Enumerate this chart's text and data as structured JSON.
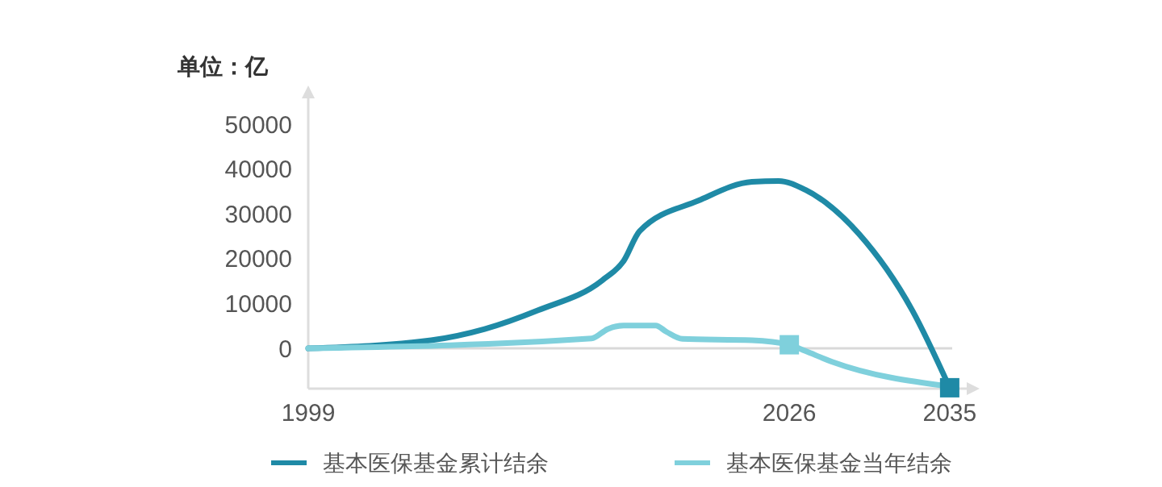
{
  "chart_data": {
    "type": "line",
    "ylabel": "单位：亿",
    "x": [
      1999,
      2005.9,
      2008.9,
      2011.9,
      2015.5,
      2016.7,
      2017.6,
      2020.9,
      2023.9,
      2025.4,
      2026.9,
      2029.9,
      2032.9,
      2035
    ],
    "series": [
      {
        "name": "基本医保基金累计结余",
        "color": "#1f8aa6",
        "values": [
          0,
          1800,
          4300,
          8500,
          15200,
          19500,
          26200,
          33000,
          37200,
          37400,
          35400,
          25600,
          8500,
          -8800
        ]
      },
      {
        "name": "基本医保基金当年结余",
        "color": "#7fd0dc",
        "x": [
          1999,
          2014.9,
          2015.8,
          2016.7,
          2018.5,
          2019.1,
          2020,
          2023.9,
          2026,
          2026.9,
          2028.4,
          2035
        ],
        "values": [
          0,
          2200,
          4300,
          5100,
          5100,
          3700,
          2100,
          1800,
          800,
          -600,
          -3000,
          -8500
        ]
      },
      {
        "type": "scatter",
        "color": "#7fd0dc",
        "x": [
          2026
        ],
        "values": [
          800
        ],
        "marker": "square"
      },
      {
        "type": "scatter",
        "color": "#1f8aa6",
        "x": [
          2035
        ],
        "values": [
          -8800
        ],
        "marker": "square"
      }
    ],
    "xlim": [
      1999,
      2036.5
    ],
    "xticks": [
      1999,
      2026,
      2035
    ],
    "ylim": [
      -9000,
      58000
    ],
    "yticks": [
      0,
      10000,
      20000,
      30000,
      40000,
      50000
    ],
    "ref_lines": [
      {
        "axis": "y",
        "value": 0,
        "color": "#d9d9d9"
      }
    ],
    "marker": "none",
    "grid": false,
    "legend": "bottom"
  }
}
